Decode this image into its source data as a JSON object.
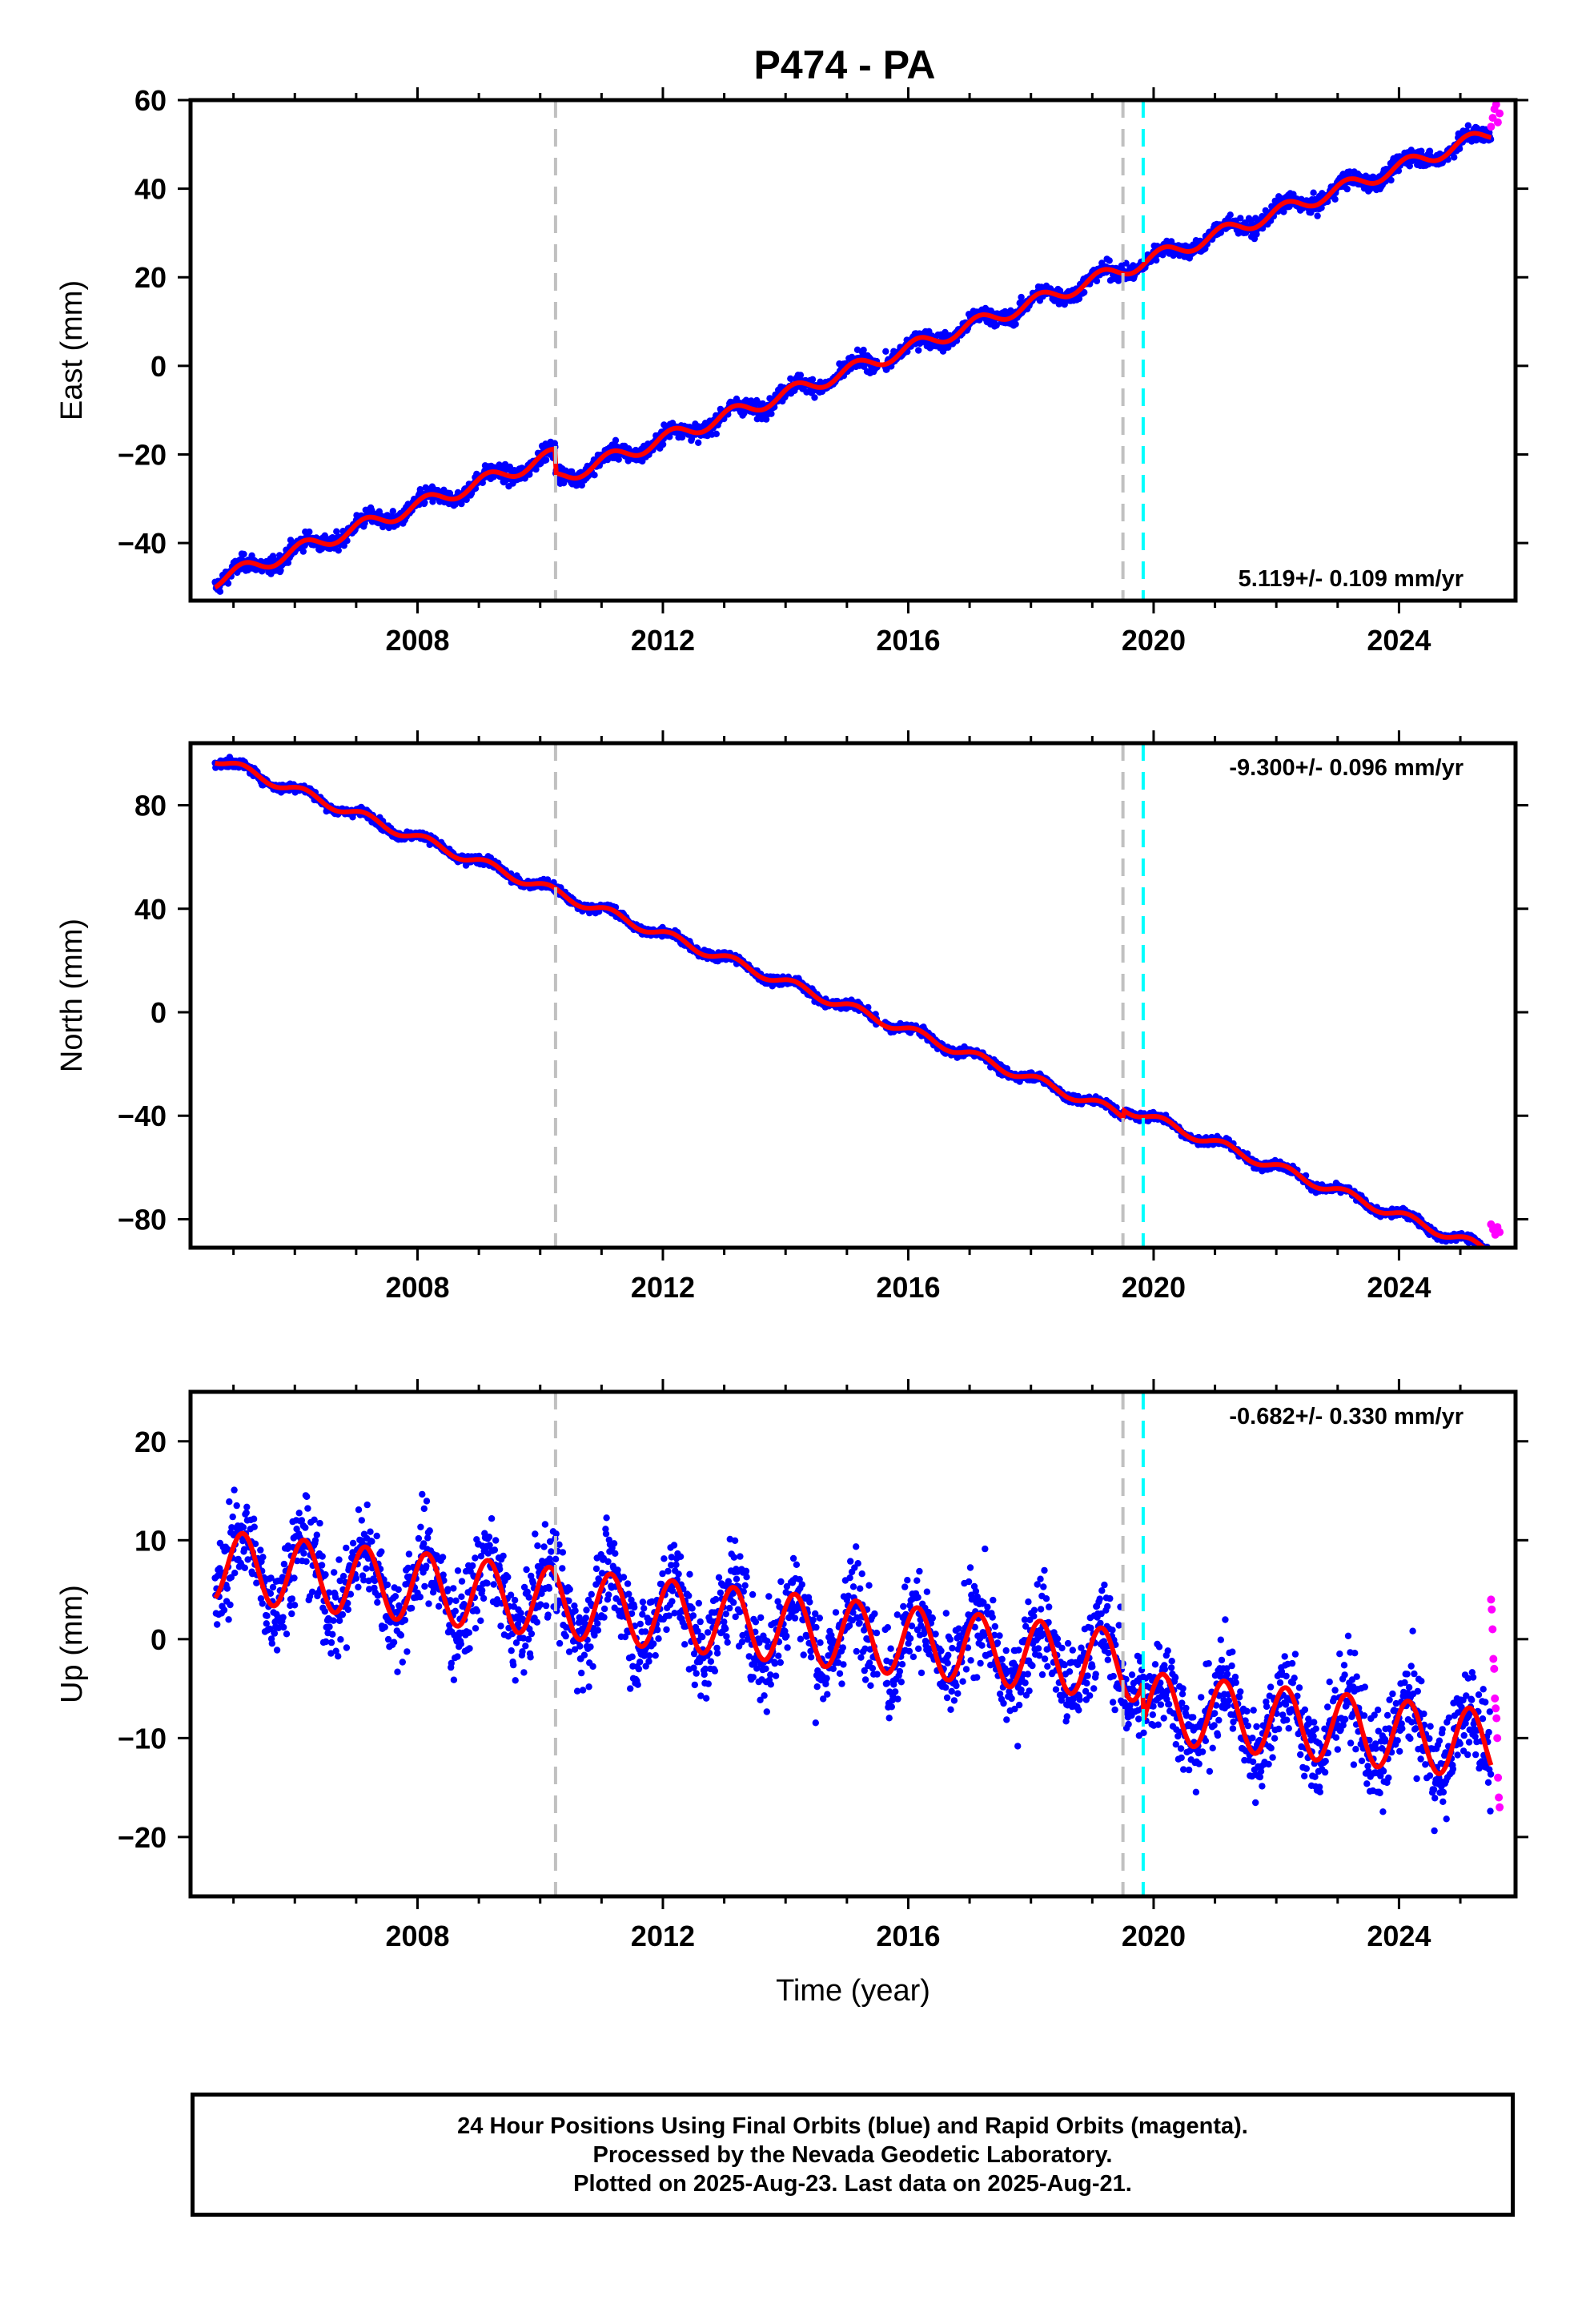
{
  "chart_data": [
    {
      "type": "scatter",
      "title": "P474 - PA",
      "ylabel": "East (mm)",
      "xlabel": "",
      "xlim": [
        2004.3,
        2025.9
      ],
      "ylim": [
        -53,
        60
      ],
      "xticks": [
        2008,
        2012,
        2016,
        2020,
        2024
      ],
      "yticks": [
        -40,
        -20,
        0,
        20,
        40,
        60
      ],
      "rate_text": "5.119+/- 0.109 mm/yr",
      "rate_position": "bottom-right",
      "event_lines": [
        2010.25,
        2019.5
      ],
      "antenna_change": 2019.83,
      "series": [
        {
          "name": "Final Orbits",
          "color": "#0000ff",
          "x_range": [
            2004.7,
            2025.5
          ],
          "trend_start": -48.5,
          "rate": 5.119,
          "seasonal_amp": 1.6,
          "noise": 1.3,
          "offsets": [
            {
              "x": 2010.25,
              "dy": -5.5
            }
          ]
        },
        {
          "name": "Rapid Orbits",
          "color": "#ff00ff",
          "x_range": [
            2025.5,
            2025.64
          ],
          "values": [
            54,
            56,
            58,
            59,
            55,
            57
          ]
        },
        {
          "name": "Model",
          "color": "#ff0000"
        }
      ]
    },
    {
      "type": "scatter",
      "title": "",
      "ylabel": "North (mm)",
      "xlabel": "",
      "xlim": [
        2004.3,
        2025.9
      ],
      "ylim": [
        -91,
        104
      ],
      "xticks": [
        2008,
        2012,
        2016,
        2020,
        2024
      ],
      "yticks": [
        -80,
        -40,
        0,
        40,
        80
      ],
      "rate_text": "-9.300+/- 0.096 mm/yr",
      "rate_position": "top-right",
      "event_lines": [
        2010.25,
        2019.5
      ],
      "antenna_change": 2019.83,
      "series": [
        {
          "name": "Final Orbits",
          "color": "#0000ff",
          "x_range": [
            2004.7,
            2025.5
          ],
          "trend_start": 98,
          "rate": -9.3,
          "seasonal_amp": 1.8,
          "noise": 1.2,
          "offsets": [
            {
              "x": 2019.5,
              "dy": 3
            }
          ]
        },
        {
          "name": "Rapid Orbits",
          "color": "#ff00ff",
          "x_range": [
            2025.5,
            2025.64
          ],
          "values": [
            -82,
            -84,
            -86,
            -83,
            -85
          ]
        },
        {
          "name": "Model",
          "color": "#ff0000"
        }
      ]
    },
    {
      "type": "scatter",
      "title": "",
      "ylabel": "Up (mm)",
      "xlabel": "Time (year)",
      "xlim": [
        2004.3,
        2025.9
      ],
      "ylim": [
        -26,
        25
      ],
      "xticks": [
        2008,
        2012,
        2016,
        2020,
        2024
      ],
      "yticks": [
        -20,
        -10,
        0,
        10,
        20
      ],
      "rate_text": "-0.682+/- 0.330 mm/yr",
      "rate_position": "top-right",
      "event_lines": [
        2010.25,
        2019.5
      ],
      "antenna_change": 2019.83,
      "series": [
        {
          "name": "Final Orbits",
          "color": "#0000ff",
          "x_range": [
            2004.7,
            2025.5
          ],
          "trend_start": 7.5,
          "rate": -0.682,
          "seasonal_amp": 3.5,
          "noise": 3.3,
          "offsets": [
            {
              "x": 2019.83,
              "dy": -4
            }
          ]
        },
        {
          "name": "Rapid Orbits",
          "color": "#ff00ff",
          "x_range": [
            2025.5,
            2025.64
          ],
          "values": [
            4,
            3,
            1,
            -2,
            -3,
            -6,
            -7,
            -8,
            -10,
            -14,
            -16,
            -17
          ]
        },
        {
          "name": "Model",
          "color": "#ff0000"
        }
      ]
    }
  ],
  "footer": {
    "line1": "24 Hour Positions Using Final Orbits (blue) and Rapid Orbits (magenta).",
    "line2": "Processed by the Nevada Geodetic Laboratory.",
    "line3": "Plotted on 2025-Aug-23. Last data on 2025-Aug-21."
  }
}
